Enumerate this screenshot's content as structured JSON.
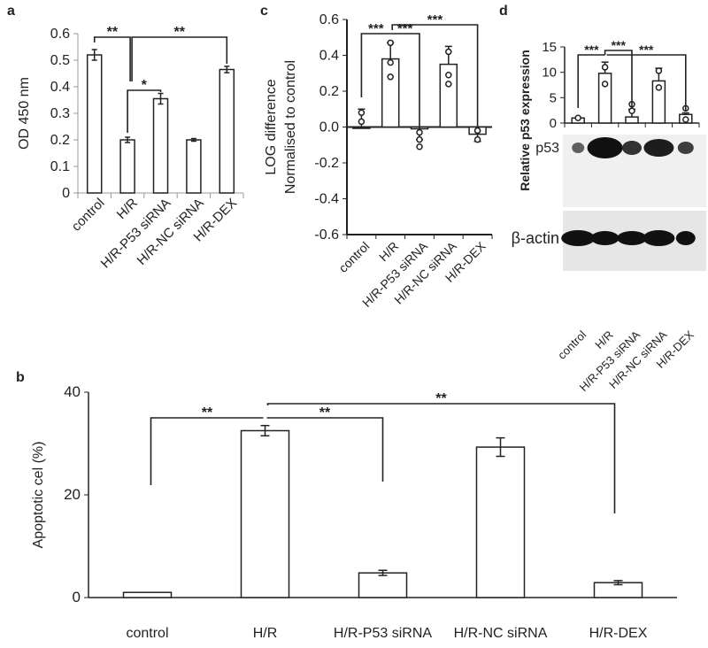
{
  "panels": {
    "a": "a",
    "b": "b",
    "c": "c",
    "d": "d"
  },
  "chart_data": [
    {
      "id": "a",
      "type": "bar",
      "title": "",
      "xlabel": "",
      "ylabel": "OD 450 nm",
      "ylim": [
        0,
        0.6
      ],
      "yticks": [
        "0",
        "0.1",
        "0.2",
        "0.3",
        "0.4",
        "0.5",
        "0.6"
      ],
      "categories": [
        "control",
        "H/R",
        "H/R-P53 siRNA",
        "H/R-NC siRNA",
        "H/R-DEX"
      ],
      "values": [
        0.52,
        0.2,
        0.355,
        0.2,
        0.465
      ],
      "errors": [
        0.02,
        0.01,
        0.02,
        0.005,
        0.012
      ],
      "annotations": [
        {
          "from": "control",
          "to": "H/R",
          "label": "**"
        },
        {
          "from": "H/R",
          "to": "H/R-DEX",
          "label": "**"
        },
        {
          "from": "H/R",
          "to": "H/R-P53 siRNA",
          "label": "*"
        }
      ],
      "grid": false
    },
    {
      "id": "c",
      "type": "bar",
      "title": "",
      "xlabel": "",
      "ylabel": "LOG difference Normalised to control",
      "ylabel_lines": [
        "LOG difference",
        "Normalised to control"
      ],
      "ylim": [
        -0.6,
        0.6
      ],
      "yticks": [
        "0.6",
        "0.4",
        "0.2",
        "0.0",
        "-0.2",
        "-0.4",
        "-0.6"
      ],
      "categories": [
        "control",
        "H/R",
        "H/R-P53 siRNA",
        "H/R-NC siRNA",
        "H/R-DEX"
      ],
      "values": [
        0.0,
        0.38,
        -0.01,
        0.35,
        -0.04
      ],
      "errors": [
        0.1,
        0.09,
        0.06,
        0.1,
        0.04
      ],
      "points": [
        [
          0.03,
          0.08
        ],
        [
          0.47,
          0.36,
          0.28
        ],
        [
          -0.03,
          -0.07,
          -0.11
        ],
        [
          0.42,
          0.29,
          0.24
        ],
        [
          -0.02,
          -0.02,
          -0.07
        ]
      ],
      "annotations": [
        {
          "from": "control",
          "to": "H/R",
          "label": "***"
        },
        {
          "from": "H/R",
          "to": "H/R-P53 siRNA",
          "label": "***"
        },
        {
          "from": "H/R",
          "to": "H/R-DEX",
          "label": "***"
        }
      ],
      "grid": false
    },
    {
      "id": "d",
      "type": "bar",
      "title": "",
      "xlabel": "",
      "ylabel": "Relative p53 expression",
      "ylim": [
        0,
        15
      ],
      "yticks": [
        "0",
        "5",
        "10",
        "15"
      ],
      "categories": [
        "control",
        "H/R",
        "H/R-P53 siRNA",
        "H/R-NC siRNA",
        "H/R-DEX"
      ],
      "values": [
        1.0,
        9.8,
        1.2,
        8.3,
        1.7
      ],
      "errors": [
        0,
        2.2,
        1.5,
        2.5,
        0.3
      ],
      "points": [
        [
          1
        ],
        [
          11,
          7.7
        ],
        [
          3.7,
          2.4
        ],
        [
          10.3,
          7.0
        ],
        [
          2.9,
          0.7
        ]
      ],
      "annotations": [
        {
          "from": "control",
          "to": "H/R",
          "label": "***"
        },
        {
          "from": "H/R",
          "to": "H/R-P53 siRNA",
          "label": "***"
        },
        {
          "from": "H/R",
          "to": "H/R-DEX",
          "label": "***"
        }
      ],
      "blot_labels": [
        "p53",
        "β-actin"
      ],
      "grid": false
    },
    {
      "id": "b",
      "type": "bar",
      "title": "",
      "xlabel": "",
      "ylabel": "Apoptotic cel (%)",
      "ylim": [
        0,
        40
      ],
      "yticks": [
        "0",
        "20",
        "40"
      ],
      "categories": [
        "control",
        "H/R",
        "H/R-P53 siRNA",
        "H/R-NC siRNA",
        "H/R-DEX"
      ],
      "values": [
        1.0,
        32.5,
        4.8,
        29.3,
        2.9
      ],
      "errors": [
        0,
        1.0,
        0.5,
        1.8,
        0.4
      ],
      "annotations": [
        {
          "from": "control",
          "to": "H/R",
          "label": "**"
        },
        {
          "from": "H/R",
          "to": "H/R-P53 siRNA",
          "label": "**"
        },
        {
          "from": "H/R",
          "to": "H/R-DEX",
          "label": "**"
        }
      ],
      "grid": false
    }
  ]
}
